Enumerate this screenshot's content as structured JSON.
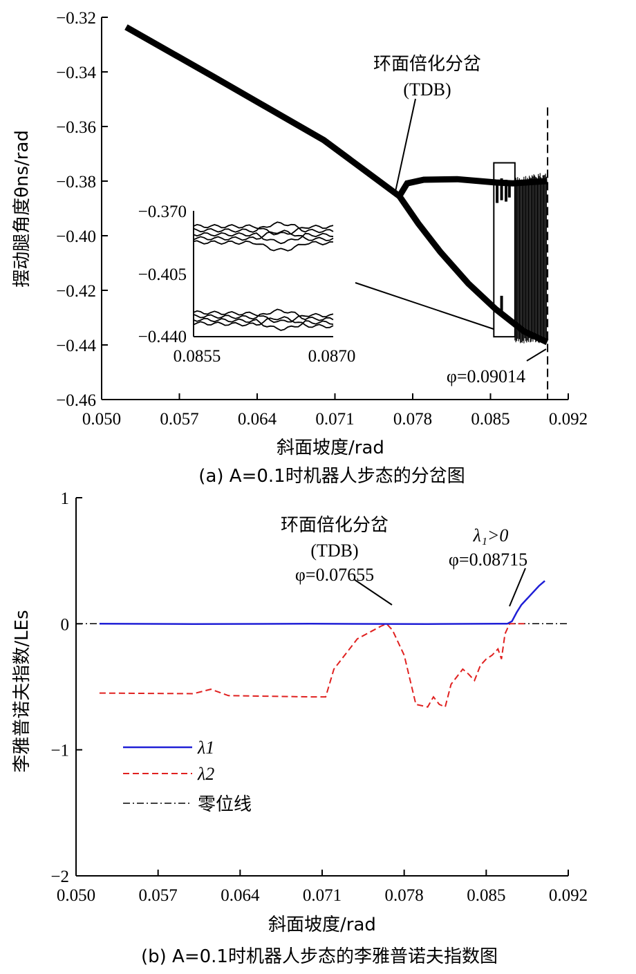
{
  "chart_data": [
    {
      "type": "scatter",
      "caption": "(a) A=0.1时机器人步态的分岔图",
      "xlabel": "斜面坡度/rad",
      "ylabel": "摆动腿角度θns/rad",
      "xlim": [
        0.05,
        0.092
      ],
      "ylim": [
        -0.46,
        -0.32
      ],
      "xticks": [
        "0.050",
        "0.057",
        "0.064",
        "0.071",
        "0.078",
        "0.085",
        "0.092"
      ],
      "yticks": [
        "−0.32",
        "−0.34",
        "−0.36",
        "−0.38",
        "−0.40",
        "−0.42",
        "−0.44",
        "−0.46"
      ],
      "annotations": {
        "tdb_name": "环面倍化分岔",
        "tdb_abbr": "(TDB)",
        "phi_end": "φ=0.09014"
      },
      "branches": {
        "single": [
          [
            0.0522,
            -0.3236
          ],
          [
            0.06,
            -0.3416
          ],
          [
            0.07,
            -0.365
          ],
          [
            0.0768,
            -0.3855
          ]
        ],
        "upper": [
          [
            0.0768,
            -0.3855
          ],
          [
            0.0775,
            -0.3808
          ],
          [
            0.079,
            -0.3795
          ],
          [
            0.082,
            -0.3793
          ],
          [
            0.0855,
            -0.3805
          ],
          [
            0.087,
            -0.3808
          ],
          [
            0.0901,
            -0.38
          ]
        ],
        "lower": [
          [
            0.0768,
            -0.3855
          ],
          [
            0.0785,
            -0.3955
          ],
          [
            0.0805,
            -0.406
          ],
          [
            0.083,
            -0.4175
          ],
          [
            0.0855,
            -0.427
          ],
          [
            0.088,
            -0.435
          ],
          [
            0.0901,
            -0.439
          ]
        ]
      },
      "chaos_band": {
        "x_start": 0.0872,
        "x_end": 0.0901,
        "y_top": -0.3765,
        "y_bottom": -0.4395
      },
      "dashed_line_x": 0.09014,
      "zoom_box": {
        "x": [
          0.0853,
          0.0872
        ],
        "y": [
          -0.3733,
          -0.437
        ]
      },
      "inset": {
        "xlim": [
          0.0855,
          0.087
        ],
        "ylim": [
          -0.44,
          -0.37
        ],
        "xticks": [
          "0.0855",
          "0.0870"
        ],
        "yticks": [
          "−0.370",
          "−0.405",
          "−0.440"
        ],
        "upper_band": [
          -0.3785,
          -0.3875
        ],
        "lower_band": [
          -0.4265,
          -0.4325
        ]
      }
    },
    {
      "type": "line",
      "caption": "(b) A=0.1时机器人步态的李雅普诺夫指数图",
      "xlabel": "斜面坡度/rad",
      "ylabel": "李雅普诺夫指数/LEs",
      "xlim": [
        0.05,
        0.092
      ],
      "ylim": [
        -2,
        1
      ],
      "xticks": [
        "0.050",
        "0.057",
        "0.064",
        "0.071",
        "0.078",
        "0.085",
        "0.092"
      ],
      "yticks": [
        "1",
        "0",
        "−1",
        "−2"
      ],
      "legend_position": "lower-left",
      "annotations": {
        "tdb_name": "环面倍化分岔",
        "tdb_abbr": "(TDB)",
        "tdb_phi": "φ=0.07655",
        "chaos_cond": "λ₁>0",
        "chaos_phi": "φ=0.08715"
      },
      "series": [
        {
          "name": "λ1",
          "color": "#1f1fd6",
          "style": "solid",
          "x": [
            0.052,
            0.06,
            0.07,
            0.08,
            0.086,
            0.0868,
            0.0872,
            0.0876,
            0.088,
            0.0885,
            0.089,
            0.0895,
            0.09
          ],
          "y": [
            0.0,
            -0.002,
            0.0,
            -0.002,
            0.0,
            0.0,
            0.02,
            0.09,
            0.15,
            0.2,
            0.25,
            0.3,
            0.34
          ]
        },
        {
          "name": "λ2",
          "color": "#e0201f",
          "style": "dashed",
          "x": [
            0.052,
            0.06,
            0.0615,
            0.063,
            0.07,
            0.0713,
            0.072,
            0.074,
            0.076,
            0.0765,
            0.077,
            0.078,
            0.079,
            0.08,
            0.0805,
            0.081,
            0.0815,
            0.082,
            0.0825,
            0.083,
            0.0835,
            0.084,
            0.0845,
            0.085,
            0.0855,
            0.086,
            0.0863,
            0.0866,
            0.087,
            0.088,
            0.0885
          ],
          "y": [
            -0.55,
            -0.555,
            -0.52,
            -0.57,
            -0.58,
            -0.58,
            -0.36,
            -0.12,
            -0.02,
            0.0,
            -0.05,
            -0.25,
            -0.64,
            -0.66,
            -0.58,
            -0.64,
            -0.66,
            -0.48,
            -0.42,
            -0.36,
            -0.4,
            -0.45,
            -0.33,
            -0.28,
            -0.25,
            -0.2,
            -0.28,
            -0.08,
            0.0,
            0.0,
            0.0
          ]
        },
        {
          "name": "零位线",
          "color": "#000000",
          "style": "dashdot",
          "x": [
            0.05,
            0.092
          ],
          "y": [
            0,
            0
          ]
        }
      ]
    }
  ]
}
